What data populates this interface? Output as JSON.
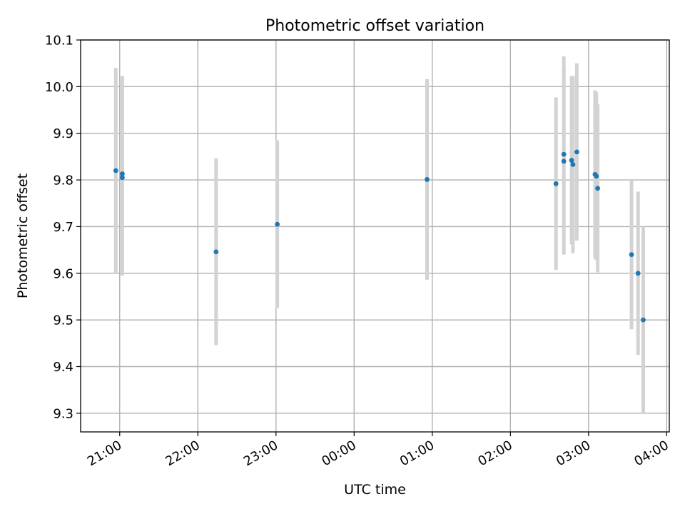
{
  "chart_data": {
    "type": "scatter",
    "title": "Photometric offset variation",
    "xlabel": "UTC time",
    "ylabel": "Photometric offset",
    "grid": true,
    "legend": "none",
    "xlim": [
      "2000-01-01T20:30",
      "2000-01-02T04:02"
    ],
    "ylim": [
      9.26,
      10.1
    ],
    "x_ticks": [
      {
        "value": "2000-01-01T21:00",
        "label": "21:00"
      },
      {
        "value": "2000-01-01T22:00",
        "label": "22:00"
      },
      {
        "value": "2000-01-01T23:00",
        "label": "23:00"
      },
      {
        "value": "2000-01-02T00:00",
        "label": "00:00"
      },
      {
        "value": "2000-01-02T01:00",
        "label": "01:00"
      },
      {
        "value": "2000-01-02T02:00",
        "label": "02:00"
      },
      {
        "value": "2000-01-02T03:00",
        "label": "03:00"
      },
      {
        "value": "2000-01-02T04:00",
        "label": "04:00"
      }
    ],
    "y_ticks": [
      {
        "value": 9.3,
        "label": "9.3"
      },
      {
        "value": 9.4,
        "label": "9.4"
      },
      {
        "value": 9.5,
        "label": "9.5"
      },
      {
        "value": 9.6,
        "label": "9.6"
      },
      {
        "value": 9.7,
        "label": "9.7"
      },
      {
        "value": 9.8,
        "label": "9.8"
      },
      {
        "value": 9.9,
        "label": "9.9"
      },
      {
        "value": 10.0,
        "label": "10.0"
      },
      {
        "value": 10.1,
        "label": "10.1"
      }
    ],
    "marker_color": "#1f77b4",
    "errorbar_color": "#d3d3d3",
    "points": [
      {
        "x": "2000-01-01T20:57",
        "y": 9.82,
        "yerr": 0.22
      },
      {
        "x": "2000-01-01T21:02",
        "y": 9.813,
        "yerr": 0.21
      },
      {
        "x": "2000-01-01T21:02",
        "y": 9.805,
        "yerr": 0.21
      },
      {
        "x": "2000-01-01T22:14",
        "y": 9.646,
        "yerr": 0.2
      },
      {
        "x": "2000-01-01T23:01",
        "y": 9.705,
        "yerr": 0.18
      },
      {
        "x": "2000-01-02T00:56",
        "y": 9.801,
        "yerr": 0.215
      },
      {
        "x": "2000-01-02T02:35",
        "y": 9.792,
        "yerr": 0.185
      },
      {
        "x": "2000-01-02T02:41",
        "y": 9.84,
        "yerr": 0.2
      },
      {
        "x": "2000-01-02T02:41",
        "y": 9.855,
        "yerr": 0.21
      },
      {
        "x": "2000-01-02T02:47",
        "y": 9.842,
        "yerr": 0.18
      },
      {
        "x": "2000-01-02T02:48",
        "y": 9.833,
        "yerr": 0.19
      },
      {
        "x": "2000-01-02T02:51",
        "y": 9.86,
        "yerr": 0.19
      },
      {
        "x": "2000-01-02T03:05",
        "y": 9.812,
        "yerr": 0.18
      },
      {
        "x": "2000-01-02T03:06",
        "y": 9.808,
        "yerr": 0.18
      },
      {
        "x": "2000-01-02T03:07",
        "y": 9.782,
        "yerr": 0.18
      },
      {
        "x": "2000-01-02T03:33",
        "y": 9.64,
        "yerr": 0.16
      },
      {
        "x": "2000-01-02T03:38",
        "y": 9.6,
        "yerr": 0.175
      },
      {
        "x": "2000-01-02T03:42",
        "y": 9.5,
        "yerr": 0.2
      }
    ]
  }
}
